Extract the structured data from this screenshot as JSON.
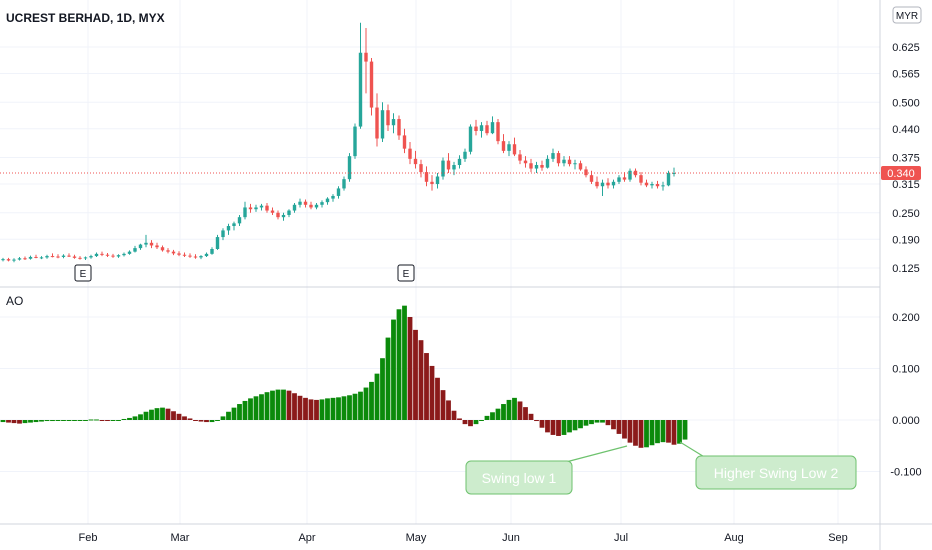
{
  "header": {
    "title": "UCREST BERHAD, 1D, MYX",
    "currency": "MYR"
  },
  "colors": {
    "up": "#26a69a",
    "down": "#ef5350",
    "ao_up": "#0b8a0b",
    "ao_down": "#8b1a1a",
    "grid": "#f0f3fa",
    "text": "#131722",
    "last_price_tag": "#ef5350",
    "callout_fill": "#cdeccd",
    "callout_border": "#6ec26e",
    "callout_text": "#ffffff"
  },
  "chart_data": [
    {
      "type": "candlestick",
      "title": "UCREST BERHAD, 1D, MYX",
      "y_axis_ticks": [
        "0.625",
        "0.565",
        "0.500",
        "0.440",
        "0.375",
        "0.315",
        "0.250",
        "0.190",
        "0.125"
      ],
      "last_price": "0.340",
      "x_axis_ticks": [
        "Feb",
        "Mar",
        "Apr",
        "May",
        "Jun",
        "Jul",
        "Aug",
        "Sep"
      ],
      "earnings_markers": [
        "E",
        "E"
      ],
      "candles": [
        [
          0.143,
          0.148,
          0.14,
          0.145
        ],
        [
          0.145,
          0.148,
          0.14,
          0.142
        ],
        [
          0.142,
          0.147,
          0.138,
          0.144
        ],
        [
          0.144,
          0.15,
          0.142,
          0.147
        ],
        [
          0.147,
          0.151,
          0.143,
          0.146
        ],
        [
          0.146,
          0.153,
          0.144,
          0.15
        ],
        [
          0.15,
          0.155,
          0.147,
          0.148
        ],
        [
          0.148,
          0.152,
          0.145,
          0.149
        ],
        [
          0.149,
          0.155,
          0.146,
          0.152
        ],
        [
          0.152,
          0.158,
          0.149,
          0.151
        ],
        [
          0.151,
          0.156,
          0.147,
          0.15
        ],
        [
          0.15,
          0.156,
          0.147,
          0.153
        ],
        [
          0.153,
          0.158,
          0.15,
          0.151
        ],
        [
          0.151,
          0.155,
          0.146,
          0.148
        ],
        [
          0.148,
          0.152,
          0.144,
          0.147
        ],
        [
          0.147,
          0.151,
          0.143,
          0.149
        ],
        [
          0.149,
          0.155,
          0.146,
          0.152
        ],
        [
          0.152,
          0.16,
          0.15,
          0.157
        ],
        [
          0.157,
          0.162,
          0.152,
          0.155
        ],
        [
          0.155,
          0.159,
          0.15,
          0.153
        ],
        [
          0.153,
          0.157,
          0.148,
          0.151
        ],
        [
          0.151,
          0.156,
          0.148,
          0.154
        ],
        [
          0.154,
          0.16,
          0.151,
          0.157
        ],
        [
          0.157,
          0.165,
          0.155,
          0.162
        ],
        [
          0.162,
          0.175,
          0.16,
          0.17
        ],
        [
          0.17,
          0.18,
          0.166,
          0.178
        ],
        [
          0.178,
          0.2,
          0.172,
          0.182
        ],
        [
          0.182,
          0.188,
          0.17,
          0.176
        ],
        [
          0.176,
          0.182,
          0.168,
          0.172
        ],
        [
          0.172,
          0.176,
          0.162,
          0.165
        ],
        [
          0.165,
          0.17,
          0.158,
          0.162
        ],
        [
          0.162,
          0.166,
          0.154,
          0.158
        ],
        [
          0.158,
          0.163,
          0.152,
          0.155
        ],
        [
          0.155,
          0.16,
          0.15,
          0.153
        ],
        [
          0.153,
          0.158,
          0.148,
          0.151
        ],
        [
          0.151,
          0.156,
          0.146,
          0.149
        ],
        [
          0.149,
          0.154,
          0.145,
          0.152
        ],
        [
          0.152,
          0.16,
          0.15,
          0.157
        ],
        [
          0.157,
          0.172,
          0.155,
          0.168
        ],
        [
          0.168,
          0.2,
          0.166,
          0.195
        ],
        [
          0.195,
          0.215,
          0.188,
          0.21
        ],
        [
          0.21,
          0.225,
          0.2,
          0.22
        ],
        [
          0.22,
          0.23,
          0.21,
          0.226
        ],
        [
          0.226,
          0.245,
          0.22,
          0.24
        ],
        [
          0.24,
          0.275,
          0.235,
          0.262
        ],
        [
          0.262,
          0.27,
          0.25,
          0.258
        ],
        [
          0.258,
          0.268,
          0.252,
          0.262
        ],
        [
          0.262,
          0.27,
          0.255,
          0.266
        ],
        [
          0.266,
          0.272,
          0.25,
          0.255
        ],
        [
          0.255,
          0.262,
          0.245,
          0.25
        ],
        [
          0.25,
          0.255,
          0.235,
          0.24
        ],
        [
          0.24,
          0.25,
          0.232,
          0.245
        ],
        [
          0.245,
          0.258,
          0.24,
          0.255
        ],
        [
          0.255,
          0.272,
          0.25,
          0.268
        ],
        [
          0.268,
          0.282,
          0.262,
          0.275
        ],
        [
          0.275,
          0.28,
          0.262,
          0.268
        ],
        [
          0.268,
          0.275,
          0.258,
          0.262
        ],
        [
          0.262,
          0.272,
          0.258,
          0.268
        ],
        [
          0.268,
          0.278,
          0.262,
          0.274
        ],
        [
          0.274,
          0.285,
          0.268,
          0.282
        ],
        [
          0.282,
          0.292,
          0.275,
          0.288
        ],
        [
          0.288,
          0.31,
          0.282,
          0.305
        ],
        [
          0.305,
          0.332,
          0.3,
          0.326
        ],
        [
          0.326,
          0.385,
          0.32,
          0.378
        ],
        [
          0.378,
          0.452,
          0.372,
          0.445
        ],
        [
          0.445,
          0.68,
          0.44,
          0.612
        ],
        [
          0.612,
          0.668,
          0.52,
          0.592
        ],
        [
          0.592,
          0.6,
          0.47,
          0.488
        ],
        [
          0.488,
          0.52,
          0.4,
          0.418
        ],
        [
          0.418,
          0.5,
          0.41,
          0.482
        ],
        [
          0.482,
          0.495,
          0.435,
          0.448
        ],
        [
          0.448,
          0.475,
          0.43,
          0.462
        ],
        [
          0.462,
          0.47,
          0.415,
          0.425
        ],
        [
          0.425,
          0.44,
          0.385,
          0.395
        ],
        [
          0.395,
          0.41,
          0.36,
          0.372
        ],
        [
          0.372,
          0.39,
          0.35,
          0.36
        ],
        [
          0.36,
          0.37,
          0.33,
          0.342
        ],
        [
          0.342,
          0.355,
          0.31,
          0.32
        ],
        [
          0.32,
          0.335,
          0.3,
          0.315
        ],
        [
          0.315,
          0.34,
          0.305,
          0.332
        ],
        [
          0.332,
          0.375,
          0.325,
          0.368
        ],
        [
          0.368,
          0.385,
          0.34,
          0.348
        ],
        [
          0.348,
          0.365,
          0.335,
          0.358
        ],
        [
          0.358,
          0.38,
          0.35,
          0.372
        ],
        [
          0.372,
          0.395,
          0.365,
          0.388
        ],
        [
          0.388,
          0.45,
          0.382,
          0.445
        ],
        [
          0.445,
          0.46,
          0.425,
          0.435
        ],
        [
          0.435,
          0.455,
          0.42,
          0.448
        ],
        [
          0.448,
          0.458,
          0.425,
          0.43
        ],
        [
          0.43,
          0.468,
          0.428,
          0.455
        ],
        [
          0.455,
          0.462,
          0.405,
          0.412
        ],
        [
          0.412,
          0.428,
          0.385,
          0.39
        ],
        [
          0.39,
          0.412,
          0.378,
          0.405
        ],
        [
          0.405,
          0.42,
          0.378,
          0.382
        ],
        [
          0.382,
          0.392,
          0.36,
          0.368
        ],
        [
          0.368,
          0.378,
          0.352,
          0.362
        ],
        [
          0.362,
          0.372,
          0.342,
          0.35
        ],
        [
          0.35,
          0.365,
          0.34,
          0.358
        ],
        [
          0.358,
          0.368,
          0.345,
          0.352
        ],
        [
          0.352,
          0.38,
          0.35,
          0.372
        ],
        [
          0.372,
          0.395,
          0.365,
          0.385
        ],
        [
          0.385,
          0.39,
          0.355,
          0.362
        ],
        [
          0.362,
          0.378,
          0.355,
          0.37
        ],
        [
          0.37,
          0.378,
          0.355,
          0.36
        ],
        [
          0.36,
          0.37,
          0.348,
          0.362
        ],
        [
          0.362,
          0.368,
          0.345,
          0.348
        ],
        [
          0.348,
          0.355,
          0.33,
          0.335
        ],
        [
          0.335,
          0.345,
          0.315,
          0.32
        ],
        [
          0.32,
          0.332,
          0.305,
          0.31
        ],
        [
          0.31,
          0.325,
          0.288,
          0.318
        ],
        [
          0.318,
          0.328,
          0.305,
          0.312
        ],
        [
          0.312,
          0.325,
          0.305,
          0.32
        ],
        [
          0.32,
          0.335,
          0.315,
          0.33
        ],
        [
          0.33,
          0.342,
          0.32,
          0.325
        ],
        [
          0.325,
          0.35,
          0.32,
          0.345
        ],
        [
          0.345,
          0.35,
          0.33,
          0.335
        ],
        [
          0.335,
          0.342,
          0.312,
          0.318
        ],
        [
          0.318,
          0.325,
          0.308,
          0.312
        ],
        [
          0.312,
          0.32,
          0.305,
          0.315
        ],
        [
          0.315,
          0.322,
          0.305,
          0.31
        ],
        [
          0.31,
          0.32,
          0.3,
          0.312
        ],
        [
          0.312,
          0.345,
          0.31,
          0.34
        ],
        [
          0.34,
          0.352,
          0.332,
          0.34
        ]
      ]
    },
    {
      "type": "bar",
      "title": "AO",
      "y_axis_ticks": [
        "0.200",
        "0.100",
        "0.000",
        "-0.100"
      ],
      "values": [
        -0.004,
        -0.005,
        -0.006,
        -0.007,
        -0.006,
        -0.005,
        -0.004,
        -0.003,
        -0.002,
        -0.002,
        -0.001,
        -0.001,
        -0.001,
        -0.001,
        0.0,
        0.0,
        0.001,
        0.001,
        0.0,
        -0.001,
        -0.001,
        0.0,
        0.002,
        0.004,
        0.007,
        0.011,
        0.016,
        0.02,
        0.023,
        0.024,
        0.022,
        0.017,
        0.012,
        0.007,
        0.003,
        -0.001,
        -0.003,
        -0.004,
        -0.004,
        0.0,
        0.007,
        0.016,
        0.024,
        0.031,
        0.037,
        0.042,
        0.046,
        0.05,
        0.054,
        0.057,
        0.059,
        0.059,
        0.057,
        0.052,
        0.047,
        0.043,
        0.04,
        0.039,
        0.04,
        0.042,
        0.043,
        0.044,
        0.046,
        0.048,
        0.051,
        0.055,
        0.063,
        0.074,
        0.09,
        0.12,
        0.16,
        0.195,
        0.215,
        0.222,
        0.2,
        0.175,
        0.155,
        0.13,
        0.105,
        0.082,
        0.058,
        0.038,
        0.018,
        0.003,
        -0.008,
        -0.012,
        -0.008,
        0.0,
        0.008,
        0.015,
        0.022,
        0.031,
        0.039,
        0.043,
        0.036,
        0.025,
        0.012,
        -0.002,
        -0.015,
        -0.024,
        -0.029,
        -0.031,
        -0.029,
        -0.024,
        -0.02,
        -0.016,
        -0.011,
        -0.008,
        -0.005,
        -0.005,
        -0.01,
        -0.018,
        -0.027,
        -0.036,
        -0.044,
        -0.05,
        -0.054,
        -0.053,
        -0.049,
        -0.045,
        -0.043,
        -0.044,
        -0.048,
        -0.046,
        -0.038
      ]
    }
  ],
  "annotations": {
    "swing_low_1": "Swing low 1",
    "higher_swing_low_2": "Higher Swing Low 2"
  }
}
